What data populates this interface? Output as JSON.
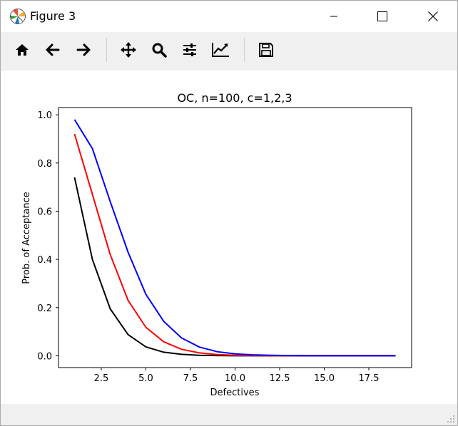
{
  "window": {
    "title": "Figure 3",
    "controls": [
      "minimize-icon",
      "maximize-icon",
      "close-icon"
    ]
  },
  "toolbar": {
    "tools": [
      {
        "name": "home",
        "icon": "home-icon"
      },
      {
        "name": "back",
        "icon": "arrow-left-icon"
      },
      {
        "name": "forward",
        "icon": "arrow-right-icon"
      },
      {
        "name": "pan",
        "icon": "move-icon"
      },
      {
        "name": "zoom",
        "icon": "magnifier-icon"
      },
      {
        "name": "configure-subplots",
        "icon": "sliders-icon"
      },
      {
        "name": "edit-axis",
        "icon": "line-chart-icon"
      },
      {
        "name": "save",
        "icon": "floppy-disk-icon"
      }
    ]
  },
  "chart_data": {
    "type": "line",
    "title": "OC, n=100, c=1,2,3",
    "xlabel": "Defectives",
    "ylabel": "Prob. of Acceptance",
    "xlim": [
      0.1,
      19.9
    ],
    "ylim": [
      -0.049,
      1.03
    ],
    "xticks": [
      2.5,
      5.0,
      7.5,
      10.0,
      12.5,
      15.0,
      17.5
    ],
    "xtick_labels": [
      "2.5",
      "5.0",
      "7.5",
      "10.0",
      "12.5",
      "15.0",
      "17.5"
    ],
    "yticks": [
      0.0,
      0.2,
      0.4,
      0.6,
      0.8,
      1.0
    ],
    "ytick_labels": [
      "0.0",
      "0.2",
      "0.4",
      "0.6",
      "0.8",
      "1.0"
    ],
    "grid": false,
    "x": [
      1,
      2,
      3,
      4,
      5,
      6,
      7,
      8,
      9,
      10,
      11,
      12,
      13,
      14,
      15,
      16,
      17,
      18,
      19
    ],
    "series": [
      {
        "color": "#000000",
        "values": [
          0.74,
          0.4,
          0.195,
          0.088,
          0.037,
          0.015,
          0.006,
          0.002,
          0.001,
          0.0,
          0.0,
          0.0,
          0.0,
          0.0,
          0.0,
          0.0,
          0.0,
          0.0,
          0.0
        ]
      },
      {
        "color": "#ff0000",
        "values": [
          0.92,
          0.67,
          0.42,
          0.23,
          0.118,
          0.058,
          0.027,
          0.012,
          0.005,
          0.002,
          0.001,
          0.0,
          0.0,
          0.0,
          0.0,
          0.0,
          0.0,
          0.0,
          0.0
        ]
      },
      {
        "color": "#0000ff",
        "values": [
          0.98,
          0.86,
          0.64,
          0.43,
          0.255,
          0.143,
          0.074,
          0.036,
          0.017,
          0.008,
          0.004,
          0.002,
          0.001,
          0.0,
          0.0,
          0.0,
          0.0,
          0.0,
          0.0
        ]
      }
    ]
  }
}
